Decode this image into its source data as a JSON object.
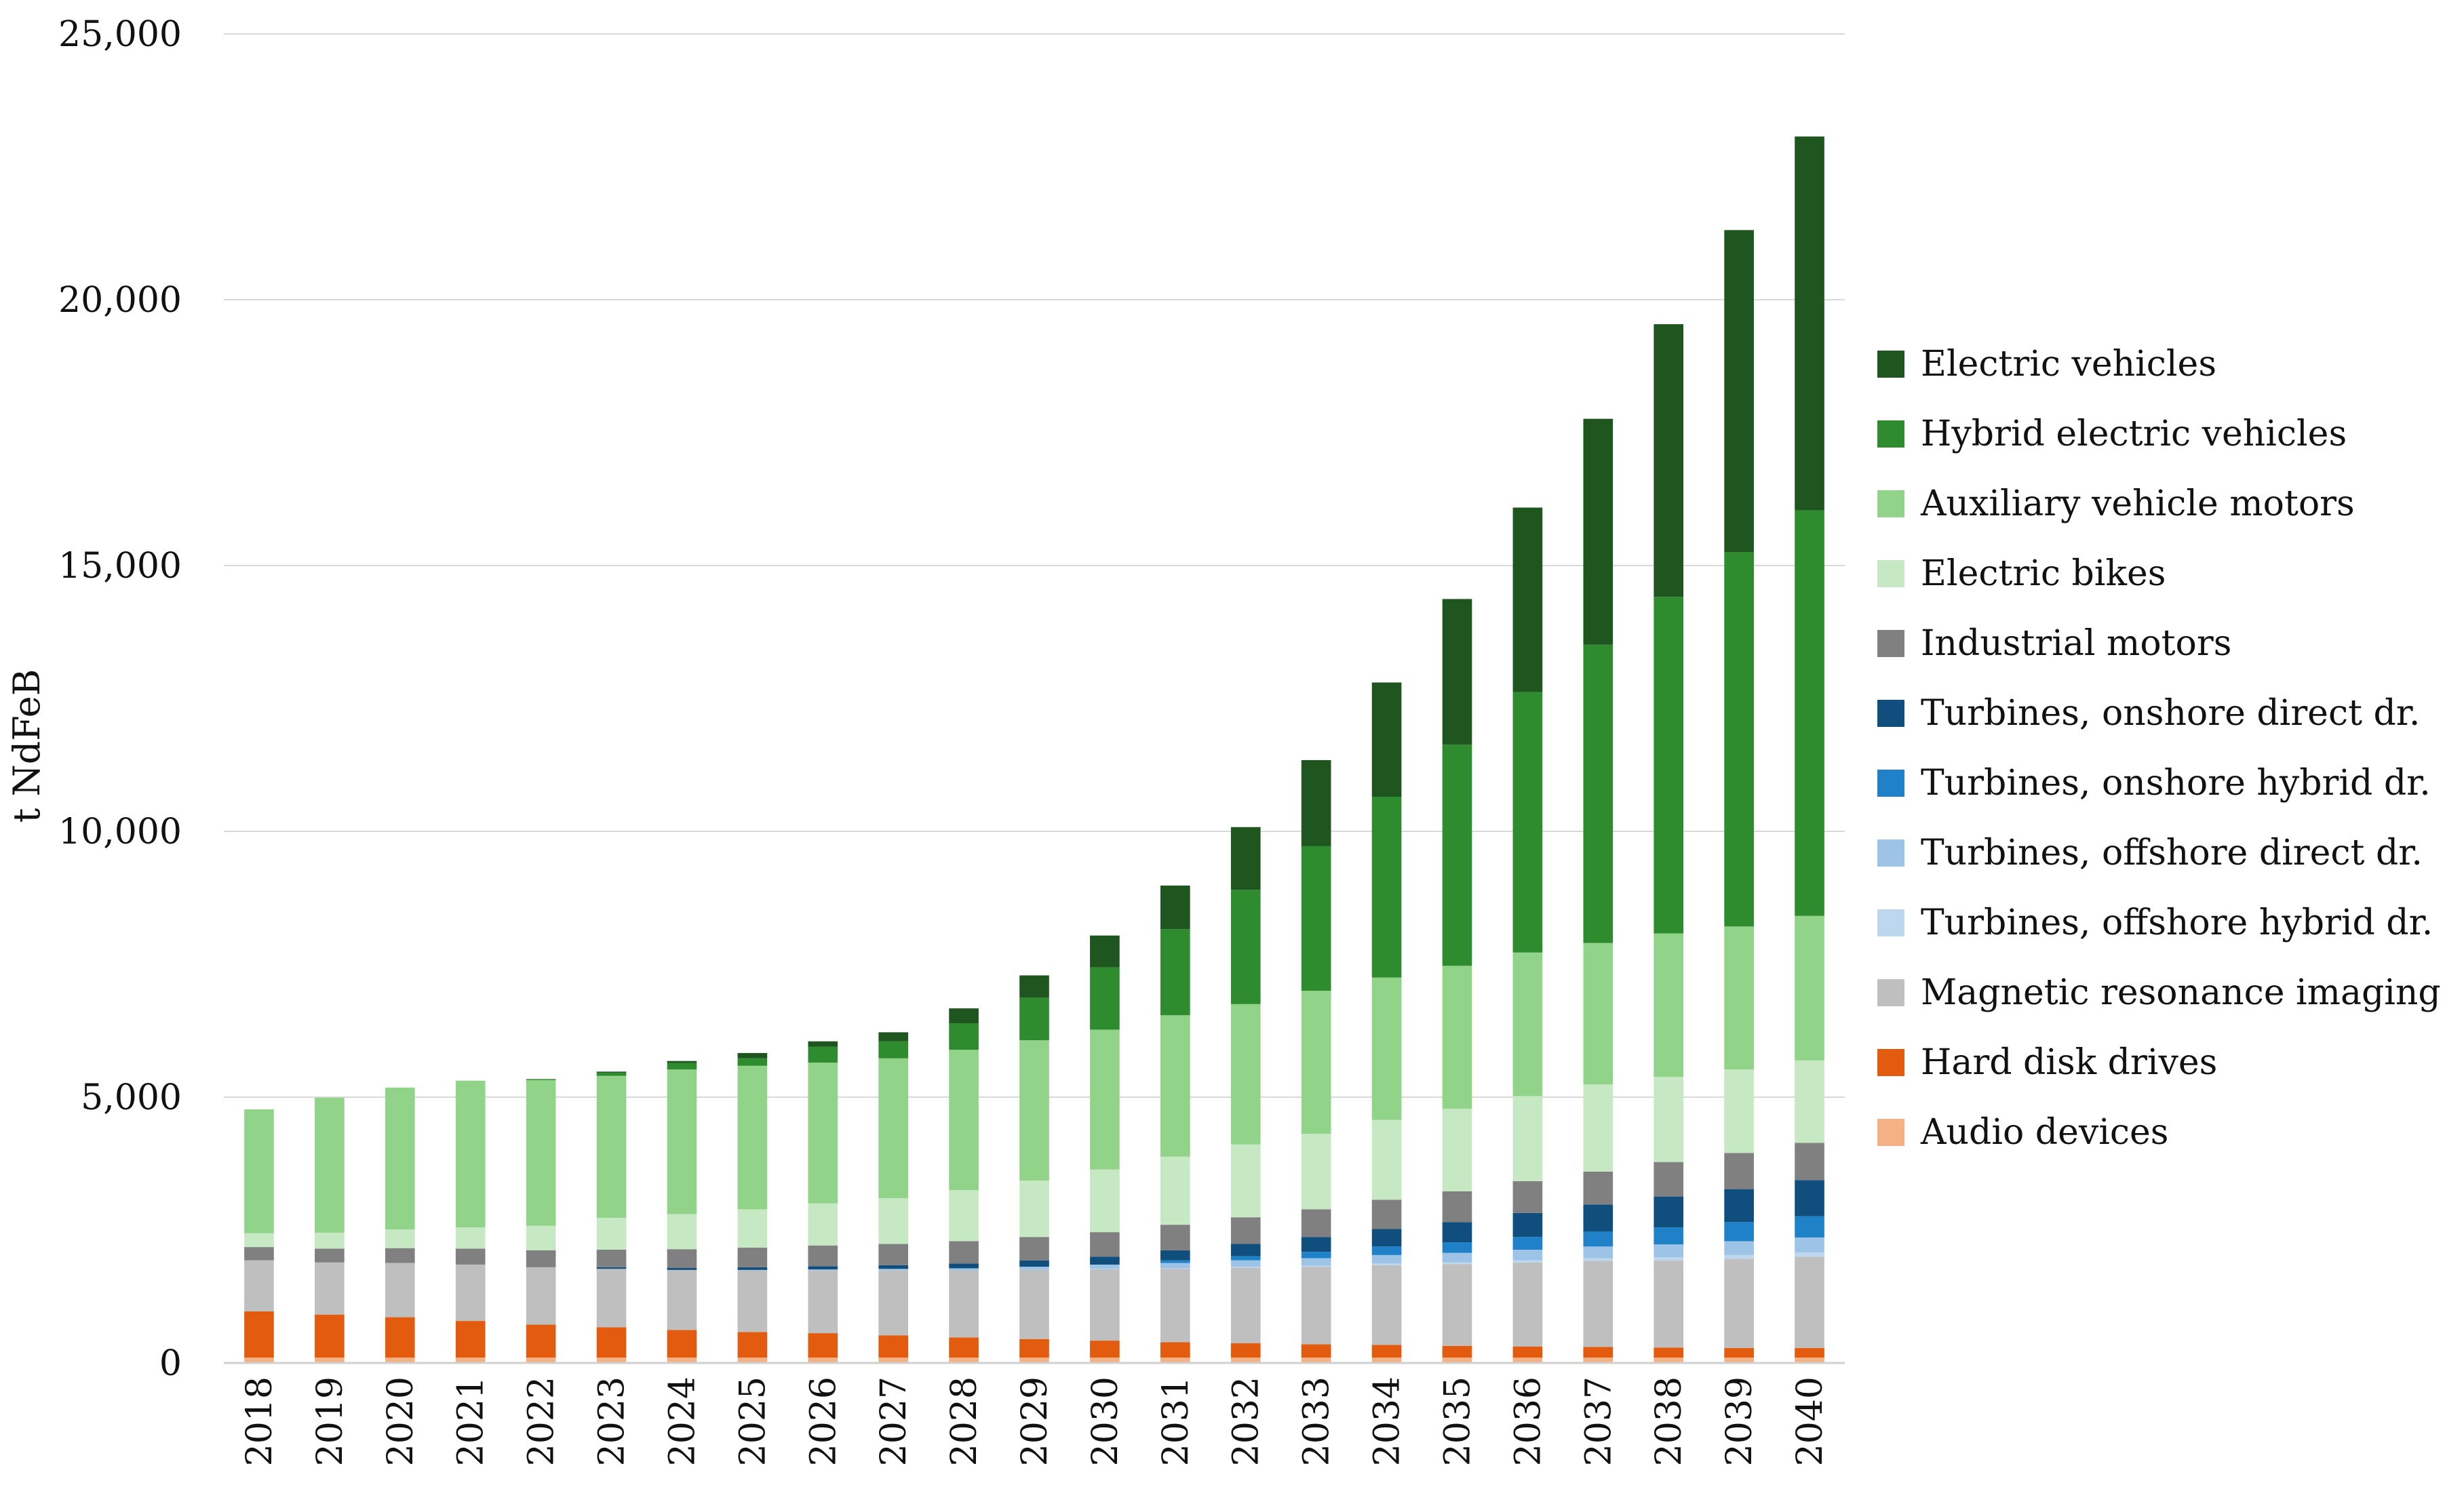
{
  "chart_data": {
    "type": "bar",
    "stacked": true,
    "title": "",
    "xlabel": "",
    "ylabel": "t NdFeB",
    "ylim": [
      0,
      25000
    ],
    "y_ticks": [
      0,
      5000,
      10000,
      15000,
      20000,
      25000
    ],
    "y_tick_labels": [
      "0",
      "5,000",
      "10,000",
      "15,000",
      "20,000",
      "25,000"
    ],
    "grid": true,
    "legend_position": "right",
    "categories": [
      "2018",
      "2019",
      "2020",
      "2021",
      "2022",
      "2023",
      "2024",
      "2025",
      "2026",
      "2027",
      "2028",
      "2029",
      "2030",
      "2031",
      "2032",
      "2033",
      "2034",
      "2035",
      "2036",
      "2037",
      "2038",
      "2039",
      "2040"
    ],
    "series": [
      {
        "name": "Audio devices",
        "color": "#f4b183",
        "values": [
          100,
          100,
          100,
          100,
          100,
          100,
          100,
          100,
          100,
          100,
          100,
          100,
          100,
          100,
          100,
          100,
          100,
          100,
          100,
          100,
          100,
          100,
          100
        ]
      },
      {
        "name": "Hard disk drives",
        "color": "#e35b0e",
        "values": [
          870,
          810,
          760,
          690,
          620,
          570,
          520,
          480,
          460,
          420,
          380,
          350,
          320,
          290,
          270,
          250,
          240,
          220,
          210,
          200,
          190,
          180,
          180
        ]
      },
      {
        "name": "Magnetic resonance imaging",
        "color": "#bfbfbf",
        "values": [
          960,
          980,
          1020,
          1060,
          1080,
          1100,
          1130,
          1160,
          1180,
          1220,
          1260,
          1300,
          1340,
          1380,
          1420,
          1460,
          1500,
          1540,
          1580,
          1620,
          1640,
          1680,
          1720
        ]
      },
      {
        "name": "Turbines, offshore hybrid dr.",
        "color": "#bdd7ee",
        "values": [
          0,
          0,
          0,
          0,
          0,
          0,
          0,
          0,
          0,
          0,
          0,
          0,
          10,
          10,
          20,
          20,
          30,
          30,
          40,
          50,
          60,
          70,
          80
        ]
      },
      {
        "name": "Turbines, offshore direct dr.",
        "color": "#9dc3e6",
        "values": [
          0,
          0,
          0,
          0,
          0,
          0,
          0,
          10,
          20,
          30,
          40,
          60,
          80,
          100,
          120,
          140,
          160,
          180,
          200,
          220,
          240,
          260,
          280
        ]
      },
      {
        "name": "Turbines, onshore hybrid dr.",
        "color": "#1f82c8",
        "values": [
          0,
          0,
          0,
          0,
          0,
          0,
          0,
          0,
          0,
          0,
          0,
          0,
          0,
          50,
          80,
          120,
          160,
          200,
          240,
          280,
          320,
          360,
          400
        ]
      },
      {
        "name": "Turbines, onshore direct dr.",
        "color": "#104e7e",
        "values": [
          0,
          0,
          0,
          0,
          0,
          30,
          40,
          50,
          60,
          70,
          90,
          120,
          150,
          190,
          230,
          280,
          330,
          380,
          450,
          510,
          580,
          620,
          680
        ]
      },
      {
        "name": "Industrial motors",
        "color": "#808080",
        "values": [
          250,
          260,
          280,
          300,
          320,
          330,
          350,
          370,
          390,
          400,
          420,
          440,
          460,
          480,
          500,
          520,
          550,
          580,
          600,
          620,
          650,
          680,
          700
        ]
      },
      {
        "name": "Electric bikes",
        "color": "#c6e8c2",
        "values": [
          260,
          300,
          350,
          400,
          460,
          600,
          660,
          720,
          790,
          860,
          960,
          1060,
          1180,
          1280,
          1370,
          1420,
          1500,
          1550,
          1600,
          1640,
          1600,
          1570,
          1550
        ]
      },
      {
        "name": "Auxiliary vehicle motors",
        "color": "#92d38a",
        "values": [
          2330,
          2540,
          2670,
          2760,
          2740,
          2670,
          2720,
          2700,
          2650,
          2630,
          2640,
          2640,
          2630,
          2660,
          2640,
          2690,
          2680,
          2690,
          2700,
          2660,
          2700,
          2690,
          2720
        ]
      },
      {
        "name": "Hybrid electric vehicles",
        "color": "#2e8b2e",
        "values": [
          0,
          0,
          0,
          0,
          20,
          60,
          120,
          140,
          300,
          320,
          500,
          800,
          1170,
          1620,
          2150,
          2720,
          3400,
          4160,
          4900,
          5610,
          6330,
          7040,
          7630
        ]
      },
      {
        "name": "Electric vehicles",
        "color": "#1f561f",
        "values": [
          0,
          0,
          0,
          0,
          0,
          20,
          40,
          100,
          100,
          170,
          280,
          420,
          600,
          820,
          1180,
          1620,
          2150,
          2740,
          3470,
          4250,
          5130,
          6060,
          7030
        ]
      }
    ]
  }
}
